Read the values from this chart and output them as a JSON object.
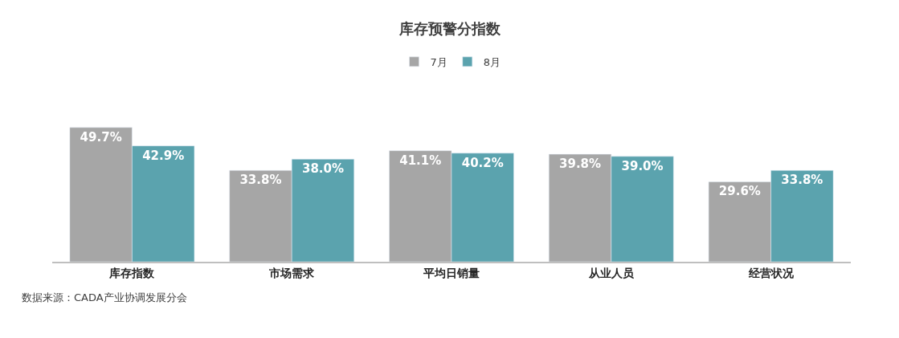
{
  "chart_data": {
    "type": "bar",
    "title": "库存预警分指数",
    "categories": [
      "库存指数",
      "市场需求",
      "平均日销量",
      "从业人员",
      "经营状况"
    ],
    "series": [
      {
        "name": "7月",
        "color": "#a6a6a6",
        "values": [
          49.7,
          33.8,
          41.1,
          39.8,
          29.6
        ],
        "value_labels": [
          "49.7%",
          "33.8%",
          "41.1%",
          "39.8%",
          "29.6%"
        ]
      },
      {
        "name": "8月",
        "color": "#5ba3ae",
        "values": [
          42.9,
          38.0,
          40.2,
          39.0,
          33.8
        ],
        "value_labels": [
          "42.9%",
          "38.0%",
          "40.2%",
          "39.0%",
          "33.8%"
        ]
      }
    ],
    "legend": "top",
    "tick_labels": "x",
    "annotations": [
      "数据来源：CADA产业协调发展分会"
    ]
  }
}
